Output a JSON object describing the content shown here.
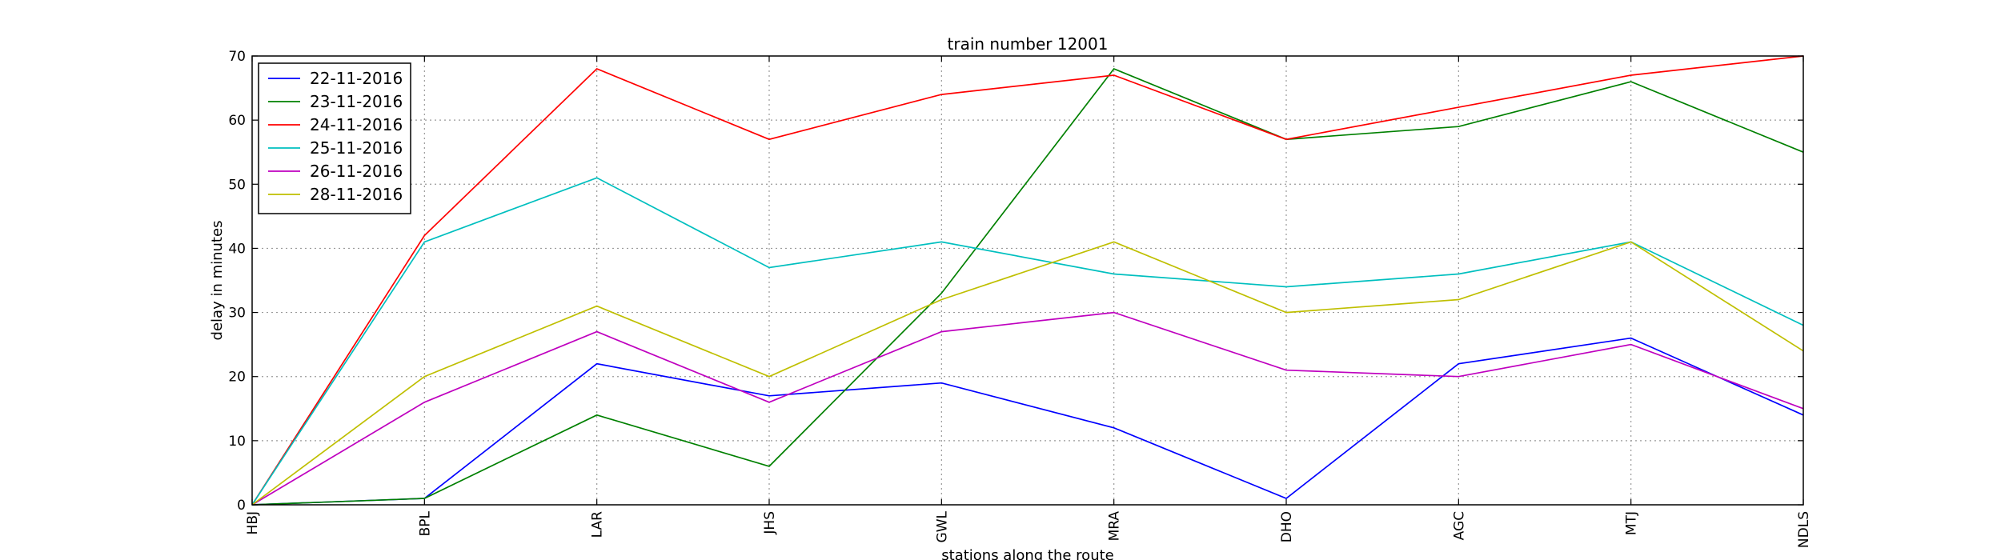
{
  "chart_data": {
    "type": "line",
    "title": "train number 12001",
    "xlabel": "stations along the route",
    "ylabel": "delay in minutes",
    "categories": [
      "HBJ",
      "BPL",
      "LAR",
      "JHS",
      "GWL",
      "MRA",
      "DHO",
      "AGC",
      "MTJ",
      "NDLS"
    ],
    "ylim": [
      0,
      70
    ],
    "yticks": [
      0,
      10,
      20,
      30,
      40,
      50,
      60,
      70
    ],
    "grid": true,
    "legend_position": "top-left",
    "series": [
      {
        "name": "22-11-2016",
        "color": "#0000ff",
        "values": [
          0,
          1,
          22,
          17,
          19,
          12,
          1,
          22,
          26,
          14
        ]
      },
      {
        "name": "23-11-2016",
        "color": "#008000",
        "values": [
          0,
          1,
          14,
          6,
          33,
          68,
          57,
          59,
          66,
          55
        ]
      },
      {
        "name": "24-11-2016",
        "color": "#ff0000",
        "values": [
          0,
          42,
          68,
          57,
          64,
          67,
          57,
          62,
          67,
          70
        ]
      },
      {
        "name": "25-11-2016",
        "color": "#00bfbf",
        "values": [
          0,
          41,
          51,
          37,
          41,
          36,
          34,
          36,
          41,
          28
        ]
      },
      {
        "name": "26-11-2016",
        "color": "#bf00bf",
        "values": [
          0,
          16,
          27,
          16,
          27,
          30,
          21,
          20,
          25,
          15
        ]
      },
      {
        "name": "28-11-2016",
        "color": "#bfbf00",
        "values": [
          0,
          20,
          31,
          20,
          32,
          41,
          30,
          32,
          41,
          24
        ]
      }
    ]
  }
}
